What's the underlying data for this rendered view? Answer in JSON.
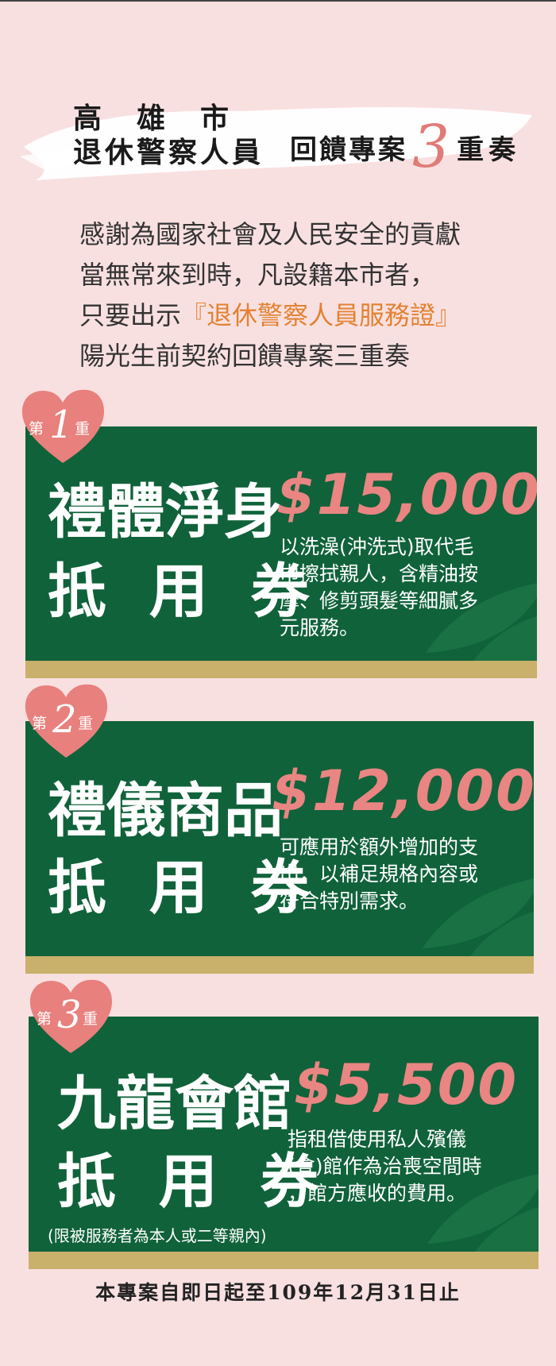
{
  "header": {
    "line1": "高雄市",
    "line2": "退休警察人員",
    "right_text": "回饋專案",
    "right_number": "3",
    "right_tail": "重奏"
  },
  "intro": {
    "line1": "感謝為國家社會及人民安全的貢獻",
    "line2": "當無常來到時，凡設籍本市者，",
    "line3_prefix": "只要出示",
    "line3_highlight": "『退休警察人員服務證』",
    "line4": "陽光生前契約回饋專案三重奏"
  },
  "colors": {
    "background": "#f9e0e0",
    "card_green": "#10623a",
    "price_pink": "#e98582",
    "highlight_orange": "#e28233",
    "strip_gold": "#c9b06b",
    "heart_pink": "#e8807d"
  },
  "cards": [
    {
      "badge_prefix": "第",
      "badge_number": "1",
      "badge_suffix": "重",
      "title_line1": "禮體淨身",
      "title_line2": "抵 用 券",
      "price": "$15,000",
      "description": "以洗澡(沖洗式)取代毛\n巾擦拭親人，含精油按\n摩、修剪頭髮等細膩多\n元服務。"
    },
    {
      "badge_prefix": "第",
      "badge_number": "2",
      "badge_suffix": "重",
      "title_line1": "禮儀商品",
      "title_line2": "抵 用 券",
      "price": "$12,000",
      "description": "可應用於額外增加的支\n出，以補足規格內容或\n符合特別需求。"
    },
    {
      "badge_prefix": "第",
      "badge_number": "3",
      "badge_suffix": "重",
      "title_line1": "九龍會館",
      "title_line2": "抵 用 券",
      "price": "$5,500",
      "description": "指租借使用私人殯儀\n(會)館作為治喪空間時\n，館方應收的費用。",
      "note": "(限被服務者為本人或二等親內)"
    }
  ],
  "footer": {
    "text": "本專案自即日起至109年12月31日止"
  }
}
